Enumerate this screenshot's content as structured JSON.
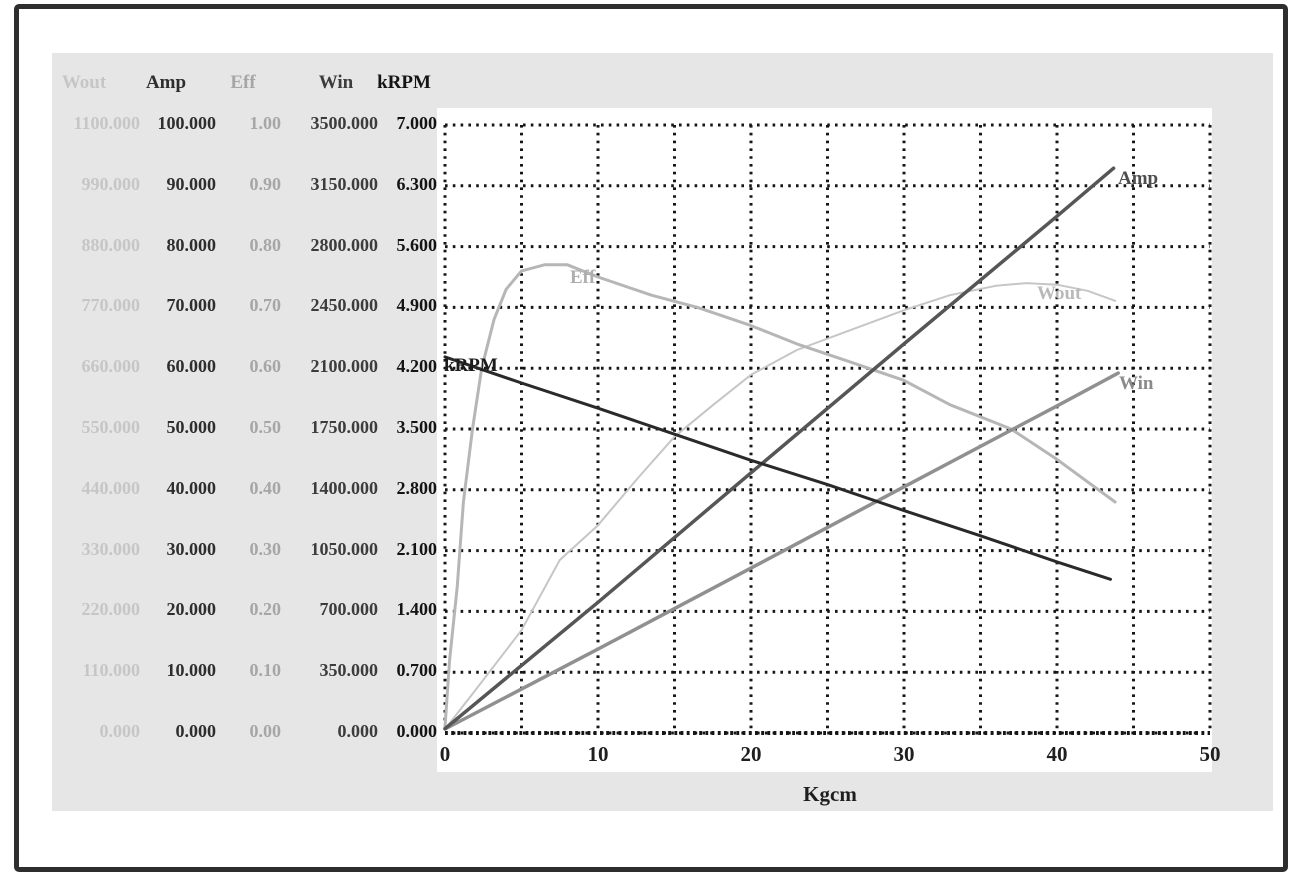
{
  "figure": {
    "frame_border_color": "#2e2e2e",
    "panel_color": "#e6e6e6",
    "plot_background": "#ffffff",
    "grid_color": "#161616"
  },
  "table": {
    "headers": [
      "Wout",
      "Amp",
      "Eff",
      "Win",
      "kRPM"
    ],
    "column_colors": [
      "#c6c6c6",
      "#2e2e2e",
      "#a6a6a6",
      "#3c3c3c",
      "#141414"
    ],
    "rows": [
      [
        "1100.000",
        "100.000",
        "1.00",
        "3500.000",
        "7.000"
      ],
      [
        "990.000",
        "90.000",
        "0.90",
        "3150.000",
        "6.300"
      ],
      [
        "880.000",
        "80.000",
        "0.80",
        "2800.000",
        "5.600"
      ],
      [
        "770.000",
        "70.000",
        "0.70",
        "2450.000",
        "4.900"
      ],
      [
        "660.000",
        "60.000",
        "0.60",
        "2100.000",
        "4.200"
      ],
      [
        "550.000",
        "50.000",
        "0.50",
        "1750.000",
        "3.500"
      ],
      [
        "440.000",
        "40.000",
        "0.40",
        "1400.000",
        "2.800"
      ],
      [
        "330.000",
        "30.000",
        "0.30",
        "1050.000",
        "2.100"
      ],
      [
        "220.000",
        "20.000",
        "0.20",
        "700.000",
        "1.400"
      ],
      [
        "110.000",
        "10.000",
        "0.10",
        "350.000",
        "0.700"
      ],
      [
        "0.000",
        "0.000",
        "0.00",
        "0.000",
        "0.000"
      ]
    ]
  },
  "chart_data": {
    "type": "line",
    "xlabel": "Kgcm",
    "xlim": [
      0,
      50
    ],
    "x_ticks": [
      0,
      10,
      20,
      30,
      40,
      50
    ],
    "grid": true,
    "legend_position": "inline-curve-labels",
    "axes": [
      {
        "name": "Wout",
        "max": 1100,
        "step": 110
      },
      {
        "name": "Amp",
        "max": 100,
        "step": 10
      },
      {
        "name": "Eff",
        "max": 1.0,
        "step": 0.1
      },
      {
        "name": "Win",
        "max": 3500,
        "step": 350
      },
      {
        "name": "kRPM",
        "max": 7.0,
        "step": 0.7
      }
    ],
    "series": [
      {
        "name": "Wout",
        "label": "Wout",
        "color": "#c6c6c6",
        "label_color": "#b9b9b9",
        "width": 2,
        "axis_max": 1100,
        "x": [
          0,
          2,
          5,
          7.5,
          10,
          12.5,
          15,
          17.5,
          20,
          23,
          26.5,
          30,
          33,
          36,
          38,
          40,
          42,
          43.8
        ],
        "values": [
          7,
          78,
          186,
          313,
          376,
          458,
          536,
          593,
          648,
          693,
          729,
          765,
          792,
          809,
          814,
          811,
          800,
          782
        ]
      },
      {
        "name": "Amp",
        "label": "Amp",
        "color": "#565656",
        "label_color": "#4e4e4e",
        "width": 3.5,
        "axis_max": 100,
        "x": [
          0,
          10,
          20,
          30,
          40,
          43.7
        ],
        "values": [
          0.7,
          21.5,
          42.8,
          64.0,
          85.0,
          92.9
        ]
      },
      {
        "name": "Eff",
        "label": "Eff",
        "color": "#b6b6b6",
        "label_color": "#aeaeae",
        "width": 3,
        "axis_max": 1.0,
        "x": [
          0,
          0.3,
          0.8,
          1.2,
          1.8,
          2.4,
          3.2,
          4,
          5,
          6.5,
          8,
          10,
          13.5,
          16.5,
          20,
          23,
          26.5,
          30,
          33,
          37,
          40,
          43.8
        ],
        "values": [
          0.01,
          0.12,
          0.24,
          0.38,
          0.5,
          0.6,
          0.68,
          0.73,
          0.76,
          0.77,
          0.77,
          0.75,
          0.72,
          0.7,
          0.67,
          0.64,
          0.61,
          0.58,
          0.54,
          0.5,
          0.45,
          0.38
        ]
      },
      {
        "name": "Win",
        "label": "Win",
        "color": "#909090",
        "label_color": "#8a8a8a",
        "width": 3.5,
        "axis_max": 3500,
        "x": [
          0,
          10,
          20,
          30,
          40,
          44
        ],
        "values": [
          23,
          483,
          949,
          1417,
          1883,
          2072
        ]
      },
      {
        "name": "kRPM",
        "label": "kRPM",
        "color": "#2a2a2a",
        "label_color": "#1c1c1c",
        "width": 3,
        "axis_max": 7.0,
        "x": [
          0,
          5,
          10,
          15,
          20,
          25,
          30,
          35,
          40,
          43.5
        ],
        "values": [
          4.33,
          4.03,
          3.74,
          3.44,
          3.14,
          2.86,
          2.56,
          2.27,
          1.97,
          1.77
        ]
      }
    ]
  }
}
